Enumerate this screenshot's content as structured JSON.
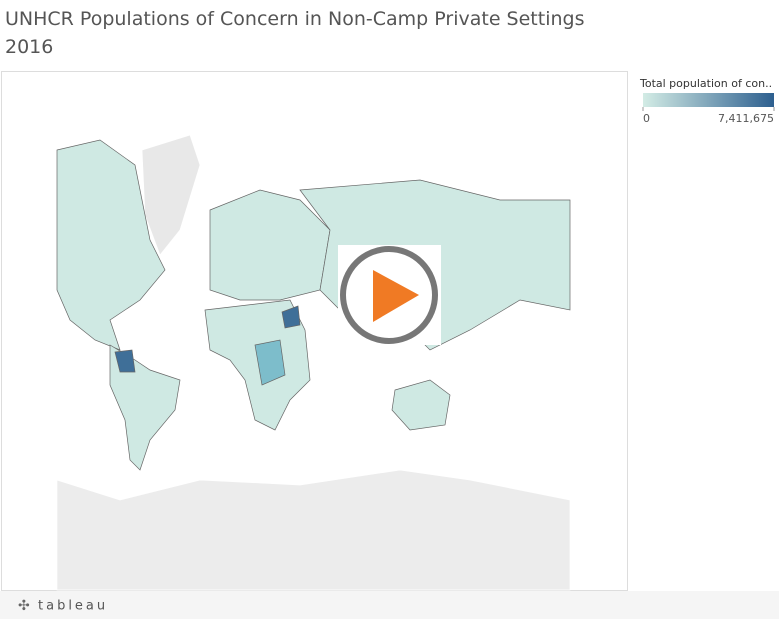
{
  "header": {
    "title": "UNHCR Populations of Concern in Non-Camp Private Settings",
    "subtitle": "2016"
  },
  "legend": {
    "title": "Total population of con..",
    "min": 0,
    "max": {
      "value": 7411675,
      "label": "7,411,675"
    },
    "colors": [
      "#d3ece5",
      "#2d5f8f"
    ]
  },
  "footer": {
    "logo": "tableau"
  }
}
